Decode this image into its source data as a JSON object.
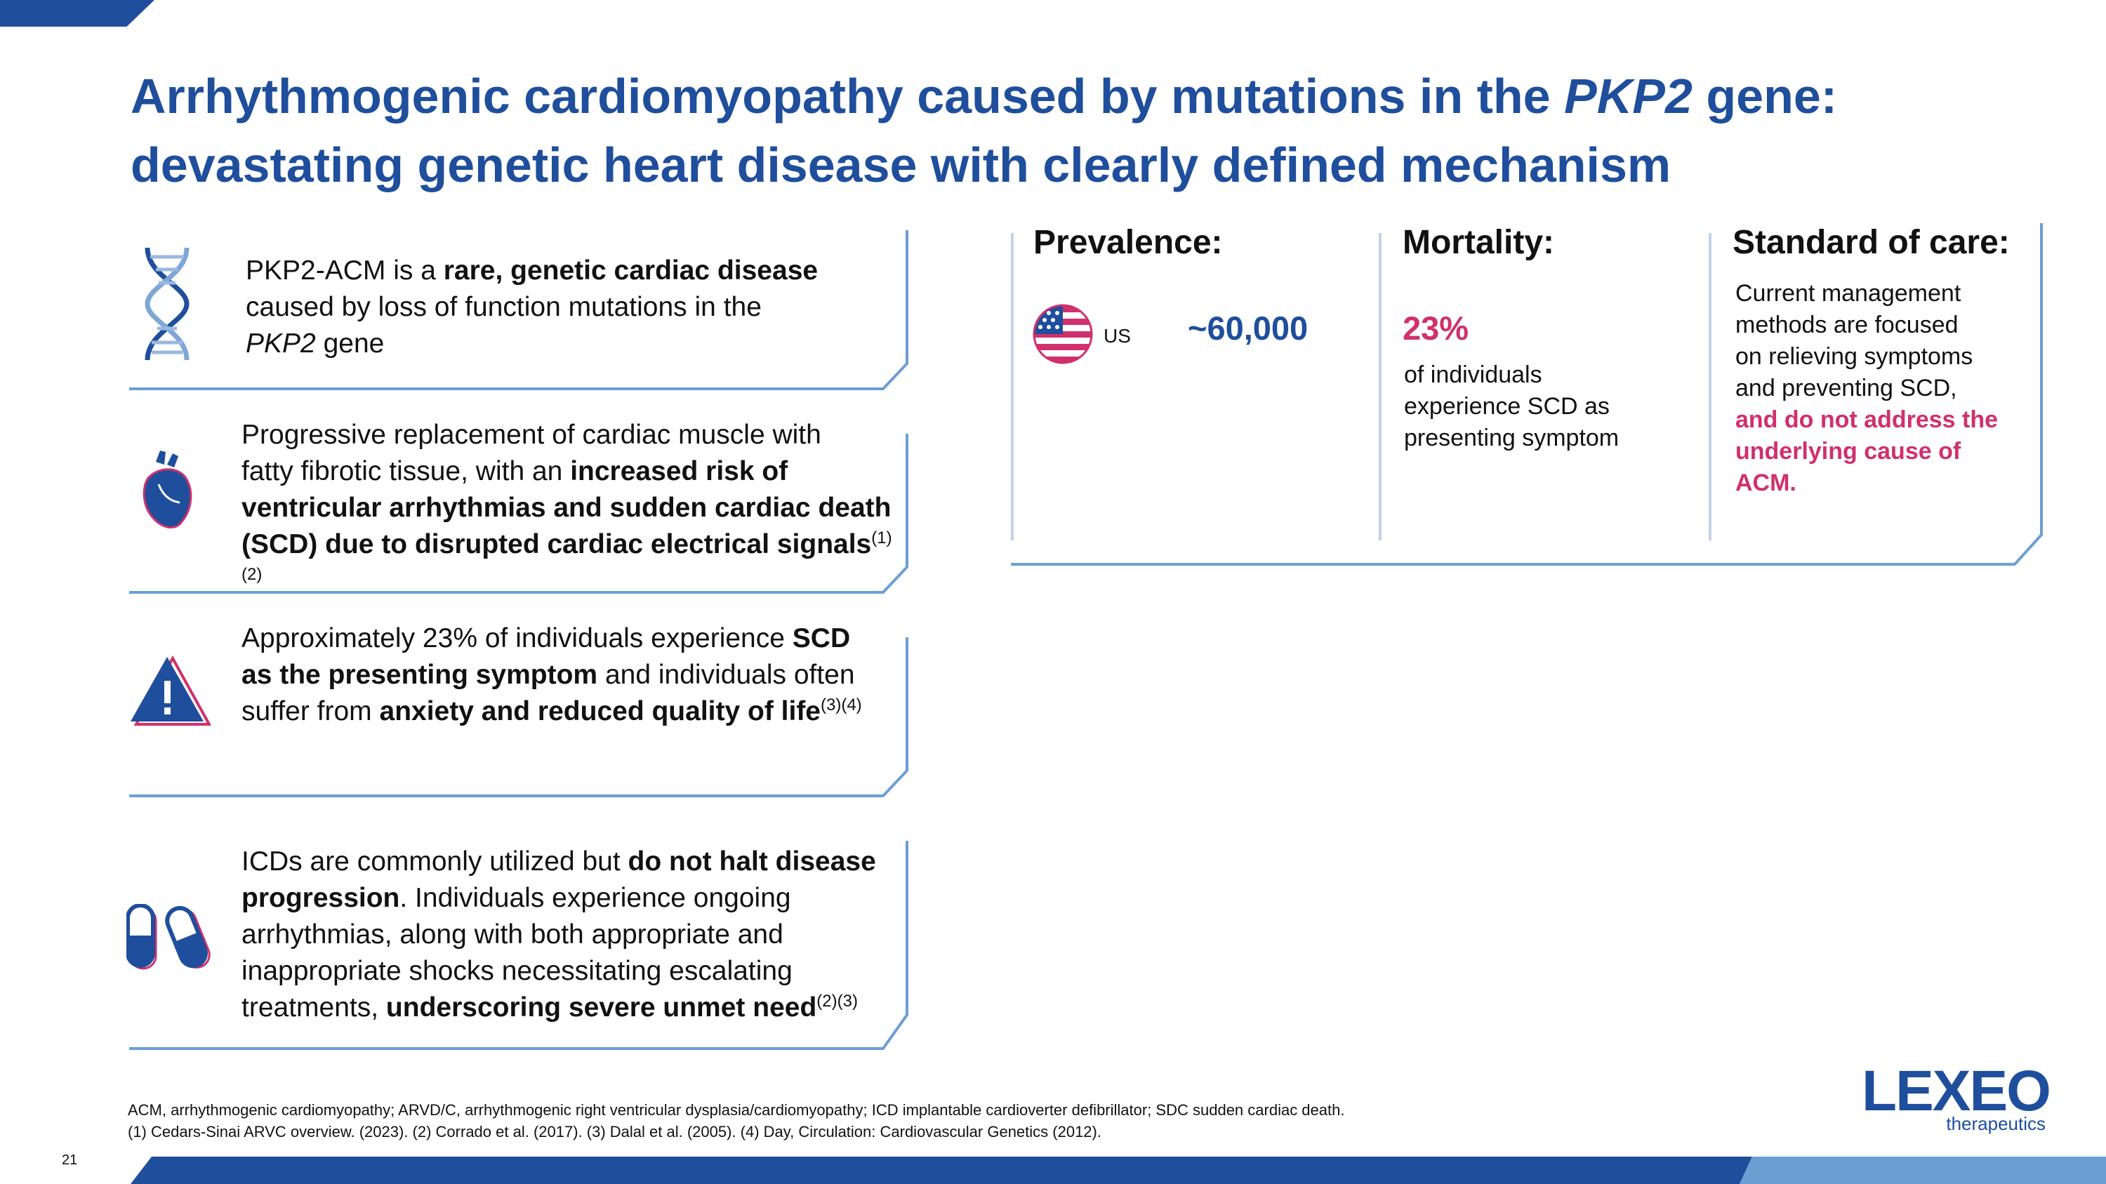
{
  "slide": {
    "title_line1_pre": "Arrhythmogenic cardiomyopathy caused by mutations in the",
    "title_line1_italic": "PKP2",
    "title_line1_post": "gene:",
    "title_line2": "devastating genetic heart disease with clearly defined mechanism",
    "page_number": "21"
  },
  "blocks": [
    {
      "icon": "dna-icon",
      "parts": {
        "p1": "PKP2-ACM is a ",
        "b1": "rare, genetic cardiac disease",
        "p2": "caused by loss of function mutations in the",
        "i1": "PKP2",
        "p3": " gene"
      }
    },
    {
      "icon": "heart-icon",
      "parts": {
        "p1": "Progressive replacement of cardiac muscle with",
        "p2": "fatty fibrotic tissue, with an ",
        "b1": "increased risk of",
        "b2": "ventricular arrhythmias and sudden cardiac death",
        "b3": "(SCD) due to disrupted cardiac electrical signals",
        "s1": "(1)(2)"
      }
    },
    {
      "icon": "warning-icon",
      "parts": {
        "p1": "Approximately 23% of individuals experience ",
        "b1": "SCD",
        "b2": "as the presenting symptom",
        "p2": "and individuals often",
        "p3": "suffer from ",
        "b3": "anxiety and reduced quality of life",
        "s1": "(3)(4)"
      }
    },
    {
      "icon": "pills-icon",
      "parts": {
        "p1": "ICDs are commonly utilized but ",
        "b1": "do not halt disease",
        "b2": "progression",
        "p2": ". Individuals experience ongoing",
        "p3": "arrhythmias, along with both appropriate and",
        "p4": "inappropriate shocks necessitating escalating",
        "p5": "treatments, ",
        "b3": "underscoring severe unmet need",
        "s1": "(2)(3)"
      }
    }
  ],
  "panel": {
    "prevalence": {
      "heading": "Prevalence:",
      "region": "US",
      "value": "~60,000"
    },
    "mortality": {
      "heading": "Mortality:",
      "value": "23%",
      "lines": [
        "of individuals",
        "experience SCD as",
        "presenting symptom"
      ]
    },
    "care": {
      "heading": "Standard of care:",
      "lines": [
        "Current management",
        "methods are focused",
        "on relieving symptoms",
        "and preventing SCD,"
      ],
      "highlight_lines": [
        "and do not address the",
        "underlying cause of",
        "ACM."
      ]
    }
  },
  "footnotes": {
    "line1": "ACM, arrhythmogenic cardiomyopathy; ARVD/C, arrhythmogenic right ventricular dysplasia/cardiomyopathy; ICD implantable cardioverter defibrillator; SDC sudden cardiac death.",
    "line2": "(1) Cedars-Sinai ARVC overview. (2023). (2) Corrado et al. (2017). (3) Dalal et al. (2005). (4) Day, Circulation: Cardiovascular Genetics (2012)."
  },
  "logo": {
    "word": "LEXEO",
    "sub": "therapeutics"
  },
  "colors": {
    "brand_blue": "#1f4e9c",
    "accent_pink": "#d0306c",
    "frame_blue": "#6b9fd4",
    "divider": "#c3d3e6"
  }
}
